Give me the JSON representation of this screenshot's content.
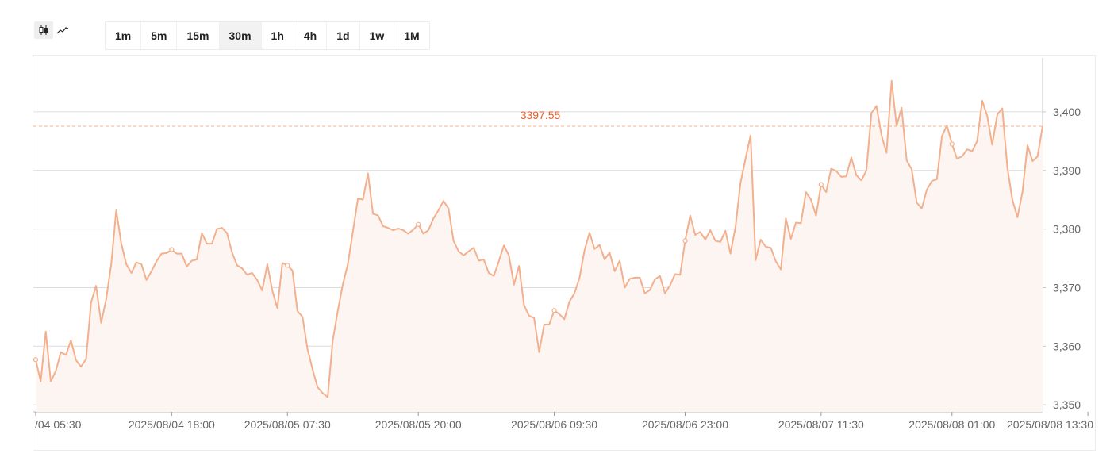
{
  "toolbar": {
    "chart_types": [
      {
        "icon": "candlestick-icon",
        "active": true
      },
      {
        "icon": "line-chart-icon",
        "active": false
      }
    ],
    "intervals": [
      "1m",
      "5m",
      "15m",
      "30m",
      "1h",
      "4h",
      "1d",
      "1w",
      "1M"
    ],
    "active_interval": "30m"
  },
  "chart_data": {
    "type": "area",
    "x_tick_labels": [
      "/04 05:30",
      "2025/08/04 18:00",
      "2025/08/05 07:30",
      "2025/08/05 20:00",
      "2025/08/06 09:30",
      "2025/08/06 23:00",
      "2025/08/07 11:30",
      "2025/08/08 01:00",
      "2025/08/08 13:30"
    ],
    "y_ticks": [
      3350,
      3360,
      3370,
      3380,
      3390,
      3400
    ],
    "y_tick_labels": [
      "3,350",
      "3,360",
      "3,370",
      "3,380",
      "3,390",
      "3,400"
    ],
    "ylim": [
      3348.8,
      3409.2
    ],
    "last_price": 3397.55,
    "last_price_label": "3397.55",
    "line_color": "#f2b08e",
    "fill_color": "#fdf5f1",
    "last_price_color": "#e4612f",
    "grid": true,
    "values": [
      3357.7,
      3354.0,
      3362.5,
      3354.0,
      3355.8,
      3359.0,
      3358.5,
      3361.0,
      3357.6,
      3356.5,
      3357.8,
      3367.5,
      3370.3,
      3364.0,
      3368.0,
      3374.0,
      3383.2,
      3377.5,
      3374.0,
      3372.5,
      3374.3,
      3374.0,
      3371.3,
      3372.8,
      3374.5,
      3375.8,
      3375.9,
      3376.5,
      3375.8,
      3375.8,
      3373.6,
      3374.6,
      3374.8,
      3379.3,
      3377.5,
      3377.5,
      3380.0,
      3380.2,
      3379.3,
      3376.0,
      3373.8,
      3373.3,
      3372.2,
      3372.5,
      3371.3,
      3369.5,
      3374.0,
      3369.5,
      3366.5,
      3374.2,
      3373.8,
      3372.9,
      3366.0,
      3365.0,
      3359.5,
      3356.0,
      3353.0,
      3352.0,
      3351.3,
      3361.0,
      3366.0,
      3370.5,
      3374.0,
      3379.5,
      3385.2,
      3385.0,
      3389.5,
      3382.6,
      3382.3,
      3380.5,
      3380.2,
      3379.8,
      3380.1,
      3379.8,
      3379.2,
      3379.9,
      3380.8,
      3379.2,
      3379.8,
      3381.8,
      3383.2,
      3384.8,
      3383.5,
      3378.0,
      3376.2,
      3375.5,
      3376.2,
      3376.8,
      3374.6,
      3374.8,
      3372.5,
      3372.0,
      3374.5,
      3377.2,
      3375.5,
      3370.5,
      3373.7,
      3367.0,
      3365.2,
      3364.8,
      3359.0,
      3363.7,
      3363.7,
      3366.1,
      3365.5,
      3364.6,
      3367.6,
      3369.0,
      3371.6,
      3376.3,
      3379.4,
      3376.6,
      3377.3,
      3374.8,
      3376.0,
      3372.8,
      3374.6,
      3370.0,
      3371.5,
      3371.7,
      3371.7,
      3369.0,
      3369.6,
      3371.4,
      3372.0,
      3369.0,
      3370.4,
      3372.3,
      3372.2,
      3378.0,
      3382.3,
      3379.0,
      3379.5,
      3378.2,
      3379.8,
      3378.0,
      3377.8,
      3379.7,
      3375.8,
      3380.4,
      3387.9,
      3392.0,
      3396.0,
      3374.7,
      3378.2,
      3377.0,
      3376.8,
      3374.5,
      3373.1,
      3381.8,
      3378.3,
      3381.1,
      3381.0,
      3386.3,
      3385.0,
      3382.3,
      3387.6,
      3386.3,
      3390.3,
      3389.9,
      3388.9,
      3389.0,
      3392.2,
      3389.2,
      3388.3,
      3390.0,
      3399.8,
      3401.0,
      3396.0,
      3393.0,
      3405.3,
      3397.6,
      3400.7,
      3391.7,
      3390.2,
      3384.5,
      3383.5,
      3386.7,
      3388.2,
      3388.5,
      3395.8,
      3397.7,
      3394.5,
      3392.0,
      3392.4,
      3393.6,
      3393.3,
      3395.0,
      3401.9,
      3399.3,
      3394.4,
      3399.5,
      3400.6,
      3390.5,
      3385.0,
      3382.0,
      3386.3,
      3394.3,
      3391.6,
      3392.4,
      3397.55
    ],
    "marker_indices": [
      0,
      27,
      50,
      76,
      103,
      129,
      156,
      182,
      209
    ]
  }
}
